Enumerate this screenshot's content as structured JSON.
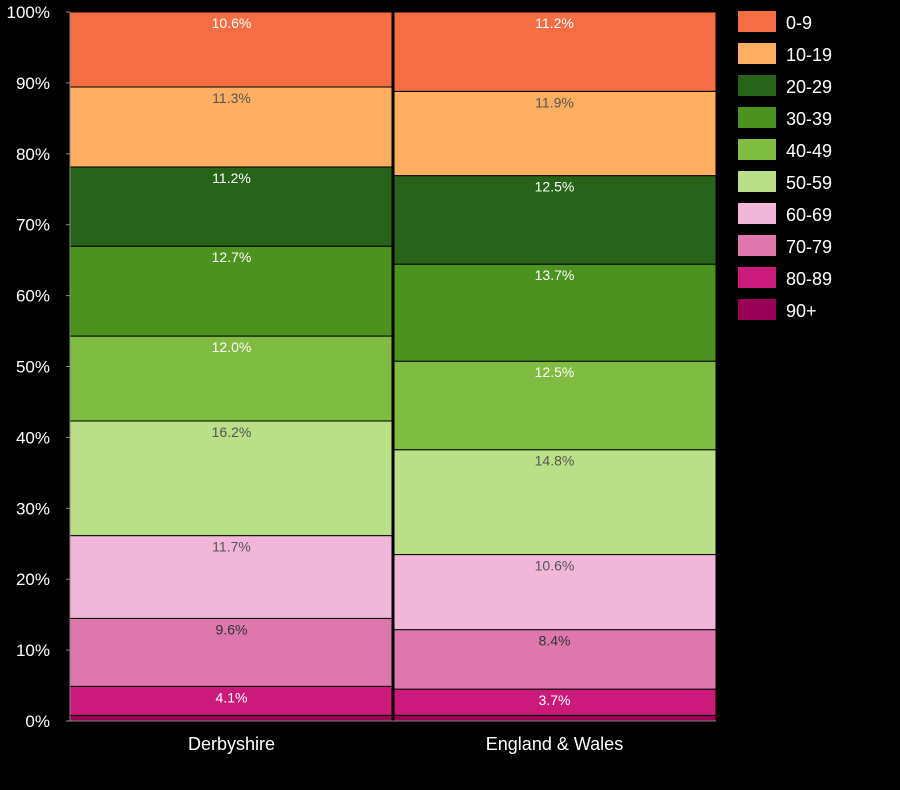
{
  "chart_data": {
    "type": "bar",
    "stacked": true,
    "orientation": "vertical",
    "normalized": true,
    "categories": [
      "Derbyshire",
      "England & Wales"
    ],
    "series": [
      {
        "name": "90+",
        "values": [
          0.8,
          0.8
        ],
        "color": "#990055",
        "label_color": "#ffffff",
        "labels": [
          "",
          ""
        ]
      },
      {
        "name": "80-89",
        "values": [
          4.1,
          3.7
        ],
        "color": "#cc1a7a",
        "label_color": "#ffffff",
        "labels": [
          "4.1%",
          "3.7%"
        ]
      },
      {
        "name": "70-79",
        "values": [
          9.6,
          8.4
        ],
        "color": "#dd77ad",
        "label_color": "#333333",
        "labels": [
          "9.6%",
          "8.4%"
        ]
      },
      {
        "name": "60-69",
        "values": [
          11.7,
          10.6
        ],
        "color": "#f1b6d8",
        "label_color": "#555555",
        "labels": [
          "11.7%",
          "10.6%"
        ]
      },
      {
        "name": "50-59",
        "values": [
          16.2,
          14.8
        ],
        "color": "#b9e086",
        "label_color": "#555555",
        "labels": [
          "16.2%",
          "14.8%"
        ]
      },
      {
        "name": "40-49",
        "values": [
          12.0,
          12.5
        ],
        "color": "#7fbc41",
        "label_color": "#ffffff",
        "labels": [
          "12.0%",
          "12.5%"
        ]
      },
      {
        "name": "30-39",
        "values": [
          12.7,
          13.7
        ],
        "color": "#4c9221",
        "label_color": "#ffffff",
        "labels": [
          "12.7%",
          "13.7%"
        ]
      },
      {
        "name": "20-29",
        "values": [
          11.2,
          12.5
        ],
        "color": "#276419",
        "label_color": "#ffffff",
        "labels": [
          "11.2%",
          "12.5%"
        ]
      },
      {
        "name": "10-19",
        "values": [
          11.3,
          11.9
        ],
        "color": "#fdae61",
        "label_color": "#555555",
        "labels": [
          "11.3%",
          "11.9%"
        ]
      },
      {
        "name": "0-9",
        "values": [
          10.6,
          11.2
        ],
        "color": "#f46d43",
        "label_color": "#ffffff",
        "labels": [
          "10.6%",
          "11.2%"
        ]
      }
    ],
    "legend_order": [
      "0-9",
      "10-19",
      "20-29",
      "30-39",
      "40-49",
      "50-59",
      "60-69",
      "70-79",
      "80-89",
      "90+"
    ],
    "y_ticks": [
      "0%",
      "10%",
      "20%",
      "30%",
      "40%",
      "50%",
      "60%",
      "70%",
      "80%",
      "90%",
      "100%"
    ],
    "ylim": [
      0,
      100
    ],
    "title": "",
    "xlabel": "",
    "ylabel": "",
    "legend_position": "right",
    "background": "#000000",
    "grid": false
  }
}
